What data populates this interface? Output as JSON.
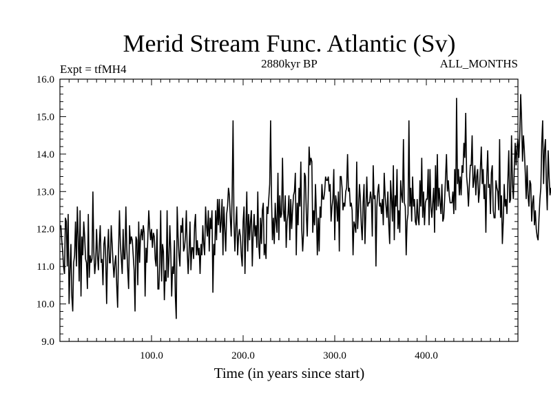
{
  "chart_data": {
    "type": "line",
    "title": "Merid Stream Func. Atlantic (Sv)",
    "subtitle_left": "Expt = tfMH4",
    "subtitle_center": "2880kyr BP",
    "subtitle_right": "ALL_MONTHS",
    "xlabel": "Time (in years since start)",
    "ylabel": "",
    "xlim": [
      0,
      500
    ],
    "ylim": [
      9.0,
      16.0
    ],
    "x_ticks": [
      {
        "value": 100,
        "label": "100.0"
      },
      {
        "value": 200,
        "label": "200.0"
      },
      {
        "value": 300,
        "label": "300.0"
      },
      {
        "value": 400,
        "label": "400.0"
      }
    ],
    "y_ticks": [
      {
        "value": 9,
        "label": "9.0"
      },
      {
        "value": 10,
        "label": "10.0"
      },
      {
        "value": 11,
        "label": "11.0"
      },
      {
        "value": 12,
        "label": "12.0"
      },
      {
        "value": 13,
        "label": "13.0"
      },
      {
        "value": 14,
        "label": "14.0"
      },
      {
        "value": 15,
        "label": "15.0"
      },
      {
        "value": 16,
        "label": "16.0"
      }
    ],
    "series": [
      {
        "name": "Atlantic MOC",
        "x_start": 1,
        "x_step": 1,
        "color": "#000000",
        "values": [
          12.1,
          11.7,
          11.4,
          11.0,
          10.8,
          12.3,
          12.2,
          11.0,
          12.4,
          10.0,
          10.9,
          11.6,
          10.2,
          9.8,
          11.1,
          11.3,
          12.2,
          11.0,
          12.6,
          11.8,
          10.6,
          12.5,
          10.2,
          11.8,
          11.3,
          12.2,
          11.8,
          11.2,
          11.1,
          10.4,
          12.4,
          10.7,
          11.3,
          11.1,
          11.2,
          13.0,
          11.4,
          10.8,
          11.1,
          12.0,
          11.3,
          10.9,
          11.6,
          12.1,
          11.1,
          11.2,
          10.5,
          11.6,
          11.8,
          11.2,
          10.0,
          11.4,
          12.0,
          11.1,
          11.1,
          12.1,
          11.6,
          11.1,
          10.7,
          11.1,
          11.3,
          10.5,
          9.9,
          11.4,
          12.5,
          11.6,
          11.2,
          10.8,
          12.0,
          11.2,
          11.2,
          12.6,
          11.5,
          10.9,
          10.4,
          12.1,
          11.6,
          11.8,
          11.7,
          11.3,
          10.9,
          9.8,
          11.8,
          11.7,
          10.5,
          12.2,
          11.1,
          11.8,
          12.0,
          11.7,
          12.1,
          11.9,
          10.2,
          11.5,
          11.1,
          11.8,
          12.5,
          12.0,
          11.7,
          12.0,
          11.5,
          11.9,
          11.8,
          11.2,
          11.0,
          12.0,
          10.4,
          10.4,
          11.1,
          12.5,
          10.6,
          11.6,
          11.4,
          10.1,
          10.9,
          10.6,
          12.5,
          10.7,
          11.2,
          12.1,
          11.4,
          10.2,
          11.0,
          10.8,
          11.7,
          10.2,
          9.6,
          12.6,
          11.8,
          11.3,
          11.0,
          12.1,
          11.9,
          12.3,
          11.4,
          11.5,
          11.8,
          12.5,
          11.4,
          10.8,
          11.4,
          12.2,
          10.9,
          11.5,
          11.5,
          11.2,
          12.1,
          12.4,
          11.3,
          11.7,
          11.3,
          11.5,
          10.8,
          11.6,
          11.3,
          12.1,
          11.6,
          11.3,
          12.6,
          12.1,
          11.8,
          12.5,
          11.4,
          12.3,
          12.0,
          12.5,
          10.3,
          11.6,
          11.3,
          12.5,
          11.7,
          12.8,
          12.1,
          12.8,
          11.9,
          12.2,
          12.8,
          11.3,
          12.6,
          12.0,
          11.4,
          12.4,
          12.6,
          13.1,
          12.9,
          12.3,
          11.8,
          12.9,
          14.9,
          12.2,
          11.4,
          12.1,
          12.6,
          11.3,
          11.8,
          12.0,
          11.8,
          11.3,
          11.0,
          12.2,
          12.6,
          10.8,
          12.0,
          13.0,
          11.4,
          12.4,
          11.7,
          12.2,
          12.5,
          11.0,
          11.9,
          12.4,
          11.8,
          12.1,
          11.5,
          13.0,
          11.6,
          11.2,
          12.3,
          11.6,
          12.5,
          12.7,
          11.3,
          11.6,
          11.2,
          12.6,
          12.4,
          12.8,
          13.2,
          14.9,
          12.8,
          11.7,
          12.3,
          11.6,
          12.7,
          12.2,
          11.9,
          13.5,
          11.7,
          12.9,
          12.3,
          12.4,
          13.9,
          12.5,
          12.2,
          12.9,
          11.5,
          12.2,
          12.4,
          12.9,
          11.7,
          12.8,
          12.0,
          12.5,
          12.9,
          13.0,
          13.5,
          11.3,
          12.7,
          12.1,
          13.1,
          12.6,
          13.8,
          12.0,
          11.4,
          11.9,
          13.5,
          13.4,
          12.4,
          11.8,
          12.8,
          14.2,
          13.7,
          13.9,
          13.8,
          11.9,
          12.5,
          12.1,
          13.2,
          12.4,
          11.3,
          12.3,
          11.4,
          12.6,
          12.3,
          13.2,
          12.8,
          12.8,
          13.0,
          13.4,
          13.3,
          13.3,
          13.4,
          13.0,
          13.2,
          12.2,
          12.6,
          12.8,
          13.6,
          11.7,
          12.9,
          12.7,
          12.2,
          13.0,
          11.4,
          13.4,
          13.4,
          13.1,
          12.5,
          12.7,
          12.6,
          13.0,
          13.1,
          14.0,
          13.0,
          13.1,
          12.6,
          12.7,
          12.5,
          11.3,
          12.2,
          12.1,
          11.9,
          13.8,
          12.0,
          12.5,
          13.2,
          12.8,
          12.1,
          11.7,
          12.7,
          13.2,
          11.6,
          12.5,
          13.4,
          12.6,
          12.7,
          12.7,
          13.0,
          12.8,
          11.8,
          13.7,
          12.8,
          12.9,
          11.0,
          12.6,
          13.0,
          13.2,
          12.6,
          12.7,
          12.4,
          12.8,
          12.1,
          13.5,
          12.9,
          12.6,
          12.3,
          13.0,
          12.1,
          11.6,
          13.3,
          12.8,
          12.2,
          13.7,
          11.7,
          12.9,
          12.6,
          13.6,
          12.0,
          12.5,
          11.9,
          13.3,
          12.9,
          12.7,
          14.4,
          12.7,
          12.6,
          11.3,
          12.2,
          12.4,
          14.9,
          12.6,
          13.1,
          12.2,
          13.4,
          12.6,
          12.8,
          12.2,
          12.1,
          12.8,
          12.3,
          12.1,
          13.3,
          12.6,
          13.9,
          12.3,
          13.0,
          12.1,
          12.7,
          12.8,
          12.8,
          13.6,
          12.1,
          13.6,
          12.6,
          12.3,
          12.7,
          13.1,
          11.9,
          13.7,
          12.5,
          14.0,
          12.6,
          13.1,
          12.7,
          12.4,
          13.2,
          12.2,
          12.3,
          12.8,
          13.4,
          14.0,
          13.0,
          13.3,
          12.9,
          12.7,
          12.7,
          12.7,
          13.0,
          12.4,
          13.6,
          12.5,
          15.5,
          13.2,
          13.6,
          12.9,
          13.4,
          12.9,
          13.7,
          13.5,
          14.3,
          13.9,
          15.1,
          13.4,
          13.1,
          12.6,
          13.2,
          13.7,
          13.7,
          14.5,
          13.1,
          13.3,
          13.7,
          12.9,
          13.4,
          13.6,
          12.7,
          13.0,
          13.6,
          14.2,
          13.2,
          13.6,
          12.8,
          13.2,
          11.9,
          13.4,
          14.1,
          13.1,
          13.2,
          12.4,
          13.5,
          13.7,
          12.5,
          12.3,
          12.3,
          13.3,
          13.1,
          13.0,
          12.5,
          14.4,
          12.3,
          12.9,
          11.6,
          12.2,
          13.2,
          12.6,
          12.8,
          12.4,
          13.3,
          14.1,
          12.7,
          12.8,
          14.5,
          13.2,
          12.8,
          13.6,
          14.3,
          13.7,
          14.2,
          14.4,
          13.9,
          14.5,
          15.6,
          14.9,
          13.8,
          14.5,
          14.1,
          13.5,
          12.8,
          13.7,
          12.9,
          12.6,
          13.3,
          13.2,
          12.2,
          12.7,
          12.9,
          12.1,
          12.5,
          12.0,
          11.8,
          11.7,
          12.3,
          12.8,
          13.1,
          14.3,
          14.9,
          13.2,
          14.1,
          14.4,
          13.2,
          12.5,
          14.1,
          13.4,
          12.9,
          13.1,
          12.9,
          13.7
        ]
      }
    ]
  }
}
